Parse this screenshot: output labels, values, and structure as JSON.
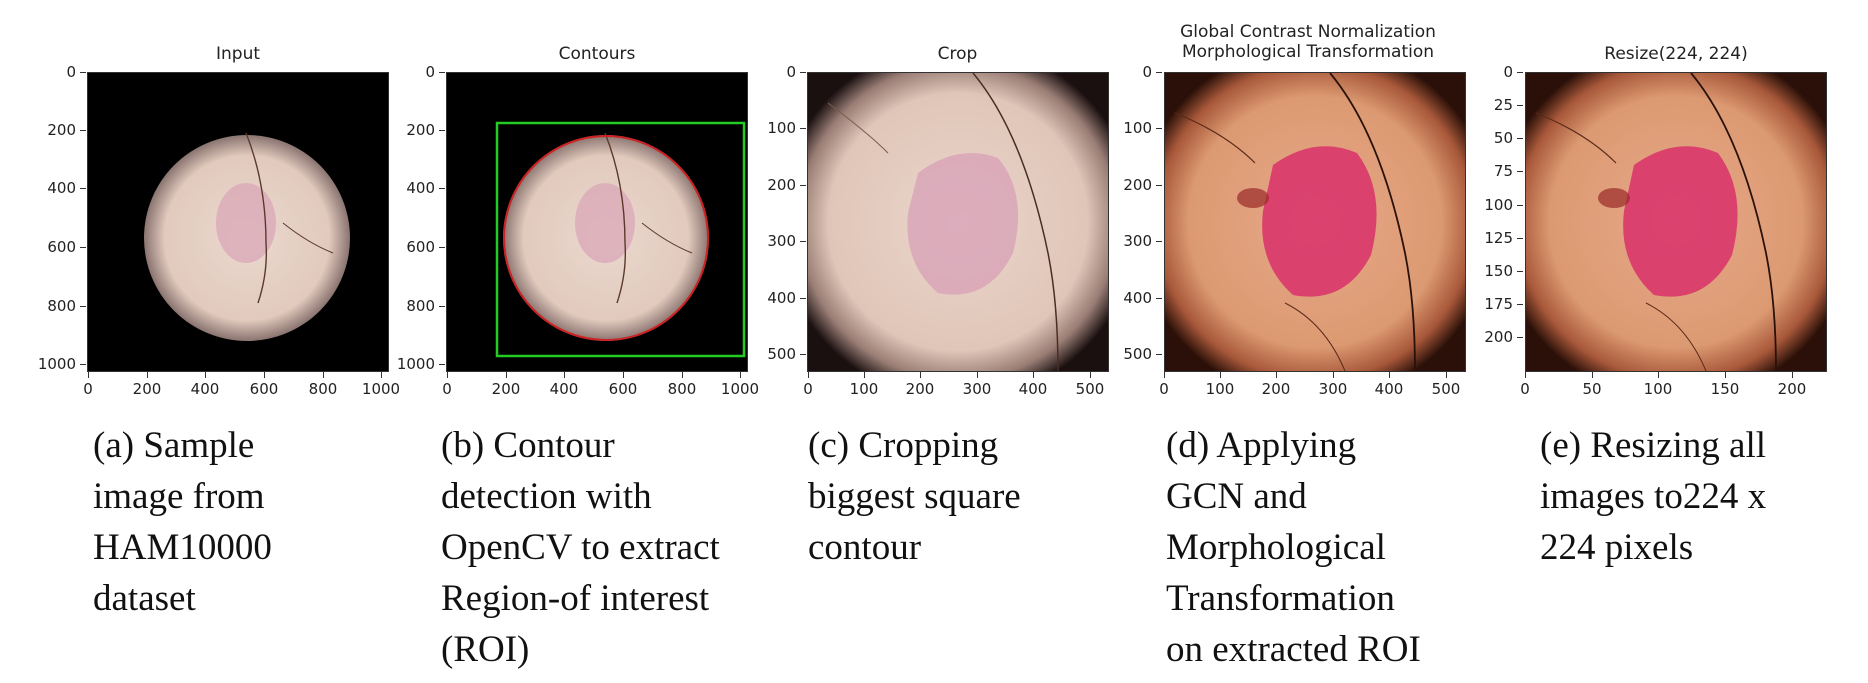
{
  "panels": [
    {
      "title_lines": [
        "Input"
      ],
      "y_ticks": [
        "0",
        "200",
        "400",
        "600",
        "800",
        "1000"
      ],
      "x_ticks": [
        "0",
        "200",
        "400",
        "600",
        "800",
        "1000"
      ],
      "caption_lines": [
        "(a) Sample",
        "image from",
        "HAM10000",
        "dataset"
      ]
    },
    {
      "title_lines": [
        "Contours"
      ],
      "y_ticks": [
        "0",
        "200",
        "400",
        "600",
        "800",
        "1000"
      ],
      "x_ticks": [
        "0",
        "200",
        "400",
        "600",
        "800",
        "1000"
      ],
      "caption_lines": [
        "(b) Contour",
        "detection with",
        "OpenCV to extract",
        "Region-of interest",
        "(ROI)"
      ]
    },
    {
      "title_lines": [
        "Crop"
      ],
      "y_ticks": [
        "0",
        "100",
        "200",
        "300",
        "400",
        "500"
      ],
      "x_ticks": [
        "0",
        "100",
        "200",
        "300",
        "400",
        "500"
      ],
      "caption_lines": [
        "(c) Cropping",
        "biggest square",
        "contour"
      ]
    },
    {
      "title_lines": [
        "Global Contrast Normalization",
        "Morphological Transformation"
      ],
      "y_ticks": [
        "0",
        "100",
        "200",
        "300",
        "400",
        "500"
      ],
      "x_ticks": [
        "0",
        "100",
        "200",
        "300",
        "400",
        "500"
      ],
      "caption_lines": [
        "(d) Applying",
        "GCN and",
        "Morphological",
        "Transformation",
        "on extracted ROI"
      ]
    },
    {
      "title_lines": [
        "Resize(224, 224)"
      ],
      "y_ticks": [
        "0",
        "25",
        "50",
        "75",
        "100",
        "125",
        "150",
        "175",
        "200"
      ],
      "x_ticks": [
        "0",
        "50",
        "100",
        "150",
        "200"
      ],
      "caption_lines": [
        "(e) Resizing all",
        "images to224 x",
        "224 pixels"
      ]
    }
  ],
  "colors": {
    "skin": "#e6cfc4",
    "lesion": "#d6a0b6",
    "enhanced_skin": "#dc9a72",
    "enhanced_lesion": "#d8306a",
    "contour_box": "#22cc22",
    "contour_circle": "#cc2222"
  }
}
